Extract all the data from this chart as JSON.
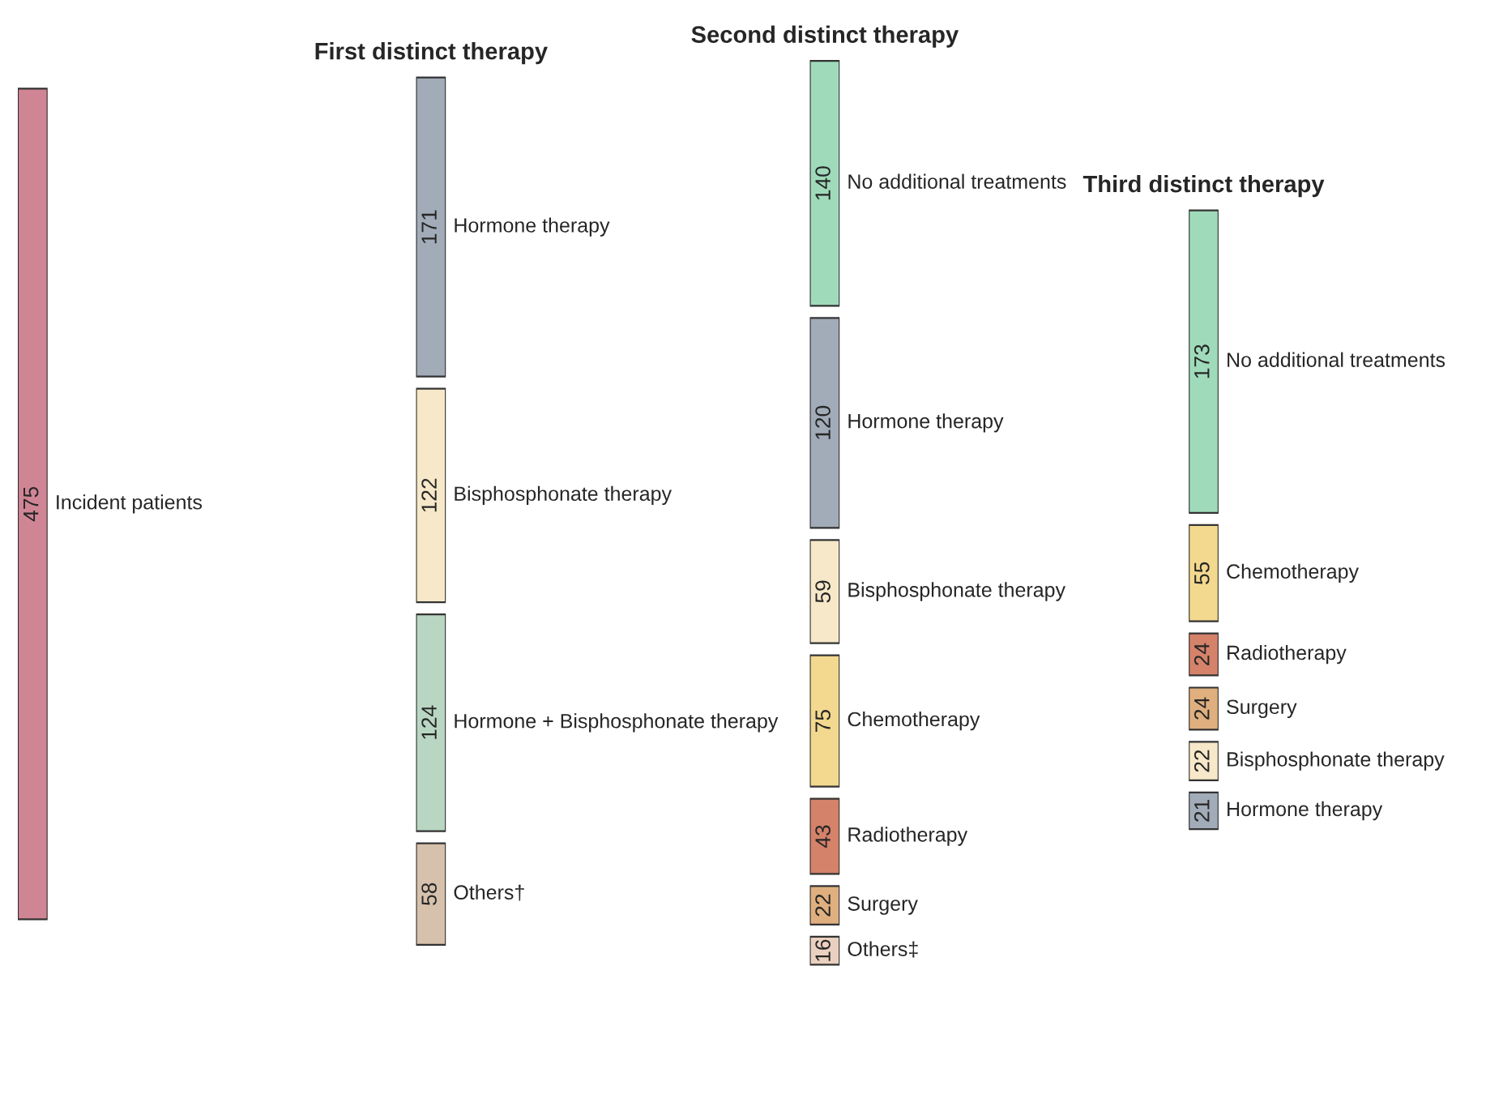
{
  "chart_data": [
    {
      "type": "other",
      "data_labels": true,
      "categories": [
        "Incident patients"
      ],
      "values": [
        475
      ],
      "colors": [
        "#d08595"
      ]
    },
    {
      "type": "other",
      "data_labels": true,
      "title": "First distinct therapy",
      "categories": [
        "Hormone therapy",
        "Bisphosphonate therapy",
        "Hormone + Bisphosphonate therapy",
        "Others†"
      ],
      "values": [
        171,
        122,
        124,
        58
      ],
      "colors": [
        "#a2abb8",
        "#f6e8c9",
        "#b9d6c2",
        "#d6c1ad"
      ]
    },
    {
      "type": "other",
      "data_labels": true,
      "title": "Second distinct therapy",
      "categories": [
        "No additional treatments",
        "Hormone therapy",
        "Bisphosphonate therapy",
        "Chemotherapy",
        "Radiotherapy",
        "Surgery",
        "Others‡"
      ],
      "values": [
        140,
        120,
        59,
        75,
        43,
        22,
        16
      ],
      "colors": [
        "#9fdbbb",
        "#a2abb8",
        "#f6e8c9",
        "#f2d98f",
        "#d4826a",
        "#dfaf7f",
        "#ead0c0"
      ]
    },
    {
      "type": "other",
      "data_labels": true,
      "title": "Third distinct therapy",
      "categories": [
        "No additional treatments",
        "Chemotherapy",
        "Radiotherapy",
        "Surgery",
        "Bisphosphonate therapy",
        "Hormone therapy"
      ],
      "values": [
        173,
        55,
        24,
        24,
        22,
        21
      ],
      "colors": [
        "#9fdbbb",
        "#f2d98f",
        "#d4826a",
        "#dfaf7f",
        "#f6e8c9",
        "#a2abb8"
      ]
    }
  ]
}
